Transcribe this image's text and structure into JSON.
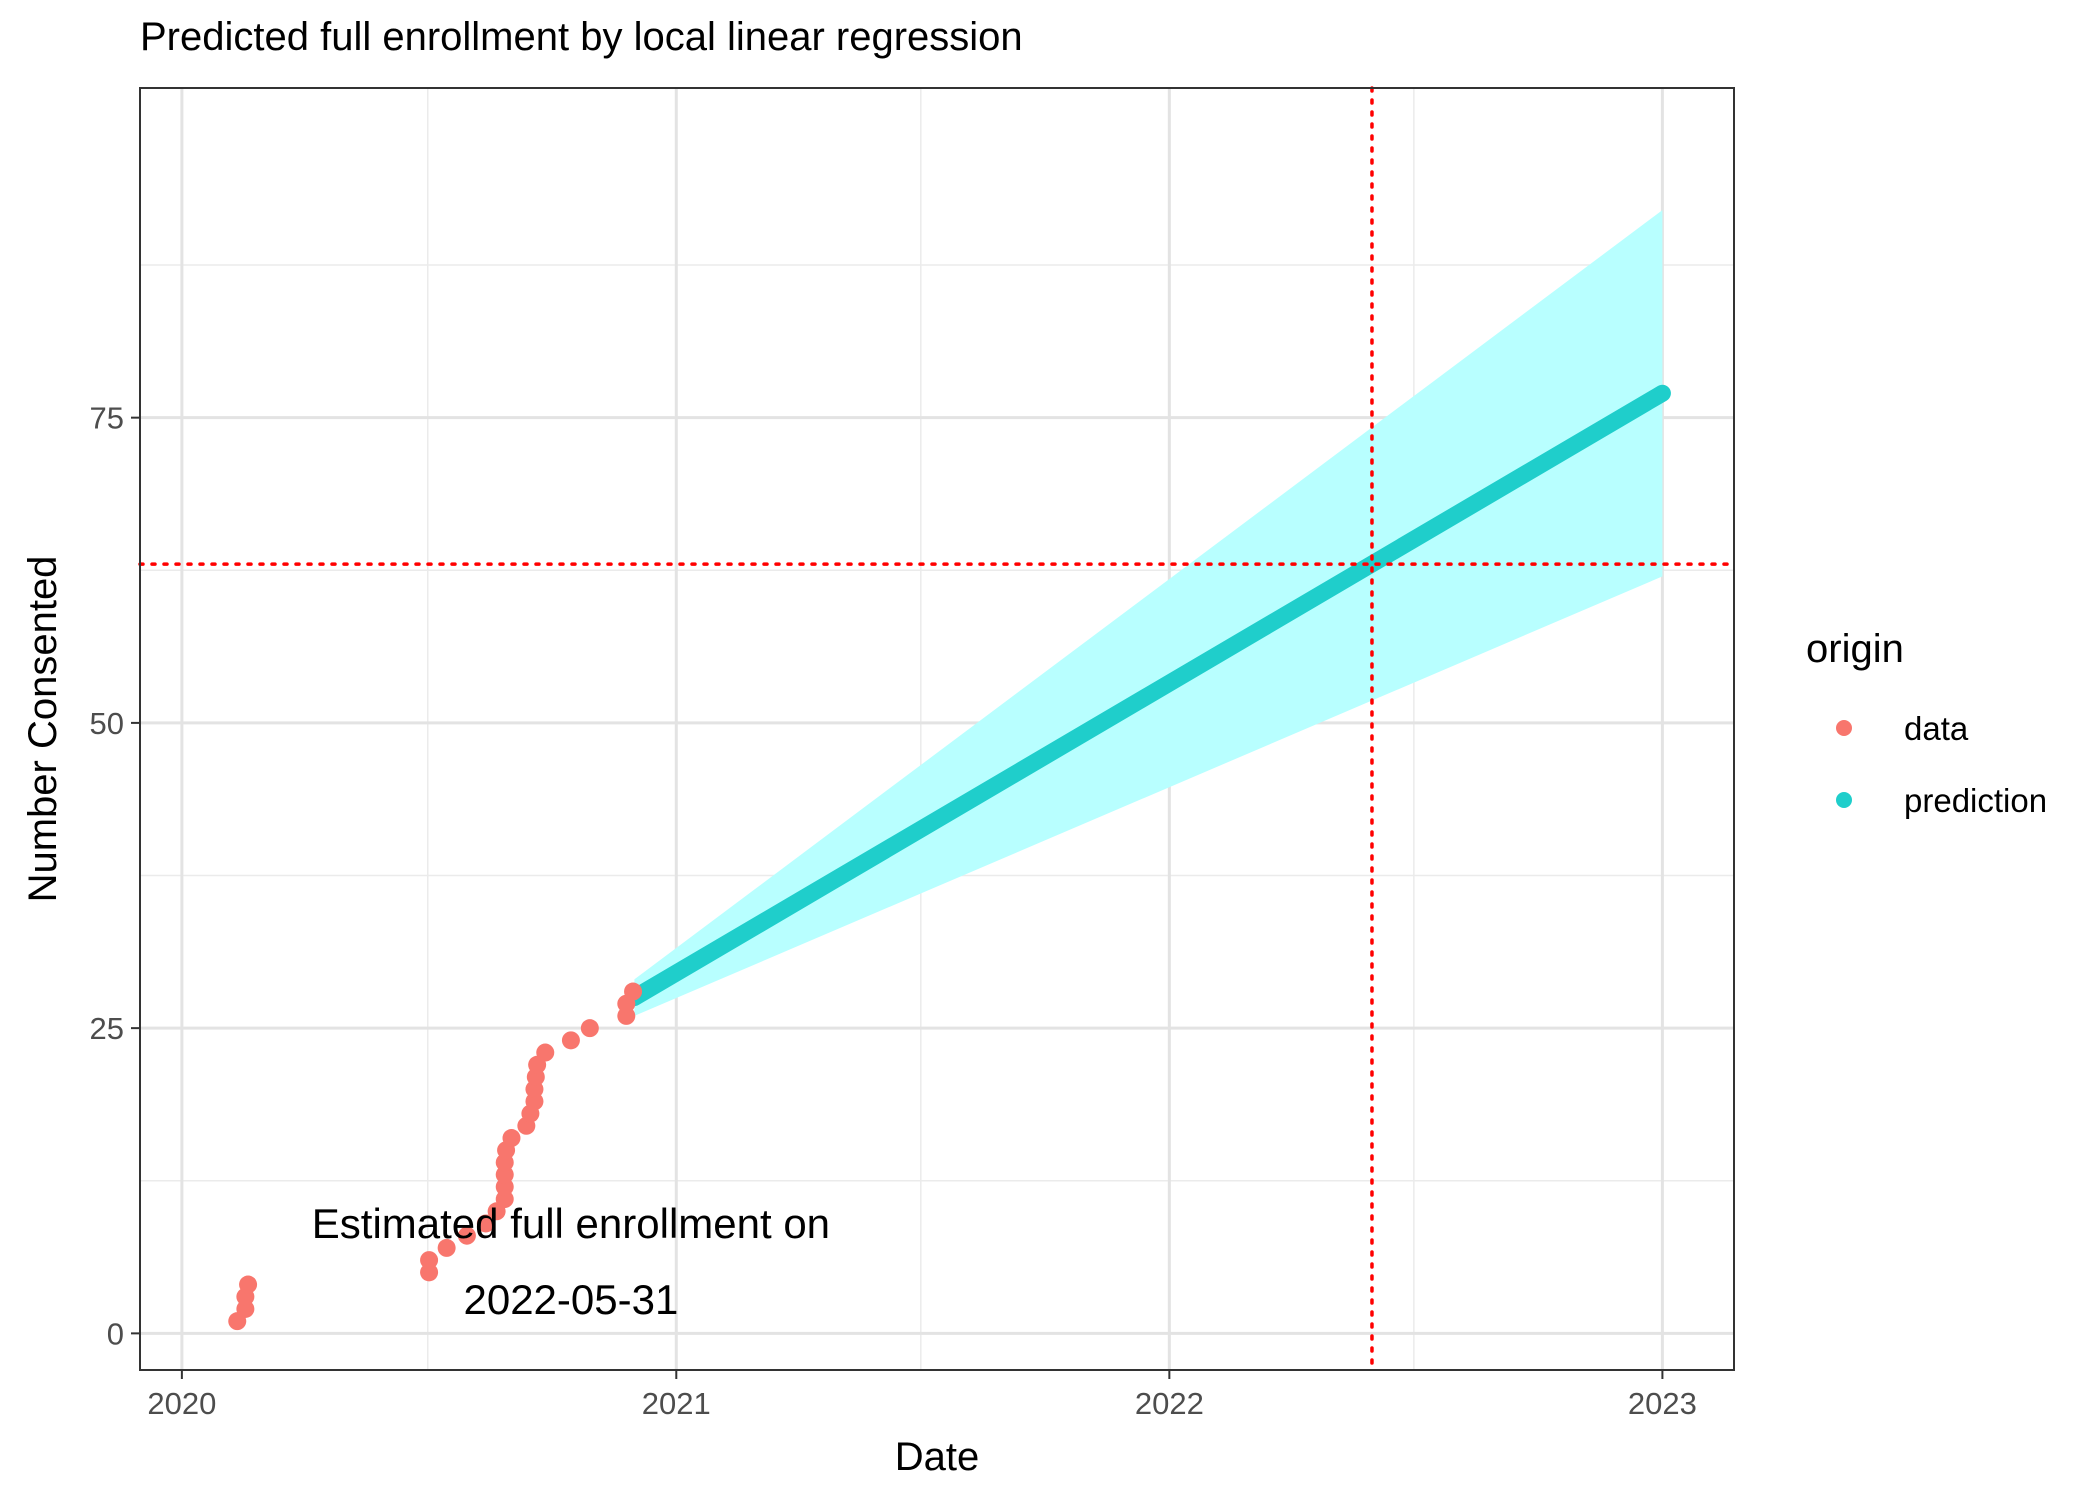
{
  "chart_data": {
    "type": "scatter",
    "title": "Predicted full enrollment by local linear regression",
    "xlabel": "Date",
    "ylabel": "Number Consented",
    "x_is_date": true,
    "xlim": [
      "2019-12-01",
      "2023-02-23"
    ],
    "ylim": [
      -3,
      102
    ],
    "x_ticks": [
      "2020",
      "2021",
      "2022",
      "2023"
    ],
    "x_tick_dates": [
      "2020-01-01",
      "2021-01-01",
      "2022-01-01",
      "2023-01-01"
    ],
    "x_minor_dates": [
      "2020-07-01",
      "2021-07-01",
      "2022-07-01"
    ],
    "y_ticks": [
      0,
      25,
      50,
      75
    ],
    "y_minor": [
      12.5,
      37.5,
      62.5,
      87.5
    ],
    "grid": true,
    "legend": {
      "title": "origin",
      "placement": "right",
      "entries": [
        {
          "label": "data",
          "color": "#F8766D"
        },
        {
          "label": "prediction",
          "color": "#1FCECB"
        }
      ]
    },
    "series": [
      {
        "name": "data",
        "color": "#F8766D",
        "points": [
          [
            "2020-02-11",
            1
          ],
          [
            "2020-02-17",
            2
          ],
          [
            "2020-02-17",
            3
          ],
          [
            "2020-02-19",
            4
          ],
          [
            "2020-07-02",
            5
          ],
          [
            "2020-07-02",
            6
          ],
          [
            "2020-07-15",
            7
          ],
          [
            "2020-07-30",
            8
          ],
          [
            "2020-08-13",
            9
          ],
          [
            "2020-08-21",
            10
          ],
          [
            "2020-08-27",
            11
          ],
          [
            "2020-08-27",
            12
          ],
          [
            "2020-08-27",
            13
          ],
          [
            "2020-08-27",
            14
          ],
          [
            "2020-08-28",
            15
          ],
          [
            "2020-09-01",
            16
          ],
          [
            "2020-09-12",
            17
          ],
          [
            "2020-09-15",
            18
          ],
          [
            "2020-09-18",
            19
          ],
          [
            "2020-09-18",
            20
          ],
          [
            "2020-09-19",
            21
          ],
          [
            "2020-09-20",
            22
          ],
          [
            "2020-09-26",
            23
          ],
          [
            "2020-10-15",
            24
          ],
          [
            "2020-10-29",
            25
          ],
          [
            "2020-11-25",
            26
          ],
          [
            "2020-11-25",
            27
          ],
          [
            "2020-11-30",
            28
          ]
        ]
      },
      {
        "name": "prediction",
        "color": "#1FCECB",
        "band_color": "#B8FFFF",
        "line": [
          [
            "2020-12-01",
            27.5
          ],
          [
            "2023-01-01",
            77
          ]
        ],
        "band_upper": [
          [
            "2020-12-01",
            29
          ],
          [
            "2023-01-01",
            92
          ]
        ],
        "band_lower": [
          [
            "2020-12-01",
            26
          ],
          [
            "2023-01-01",
            62
          ]
        ]
      }
    ],
    "reference_lines": [
      {
        "orientation": "vertical",
        "x": "2022-05-31",
        "color": "#FF0000",
        "style": "dotted"
      },
      {
        "orientation": "horizontal",
        "y": 63,
        "color": "#FF0000",
        "style": "dotted"
      }
    ],
    "annotation": {
      "line1": "Estimated full enrollment on",
      "line2": "2022-05-31",
      "x": "2020-10-15",
      "y": 5.5
    }
  }
}
